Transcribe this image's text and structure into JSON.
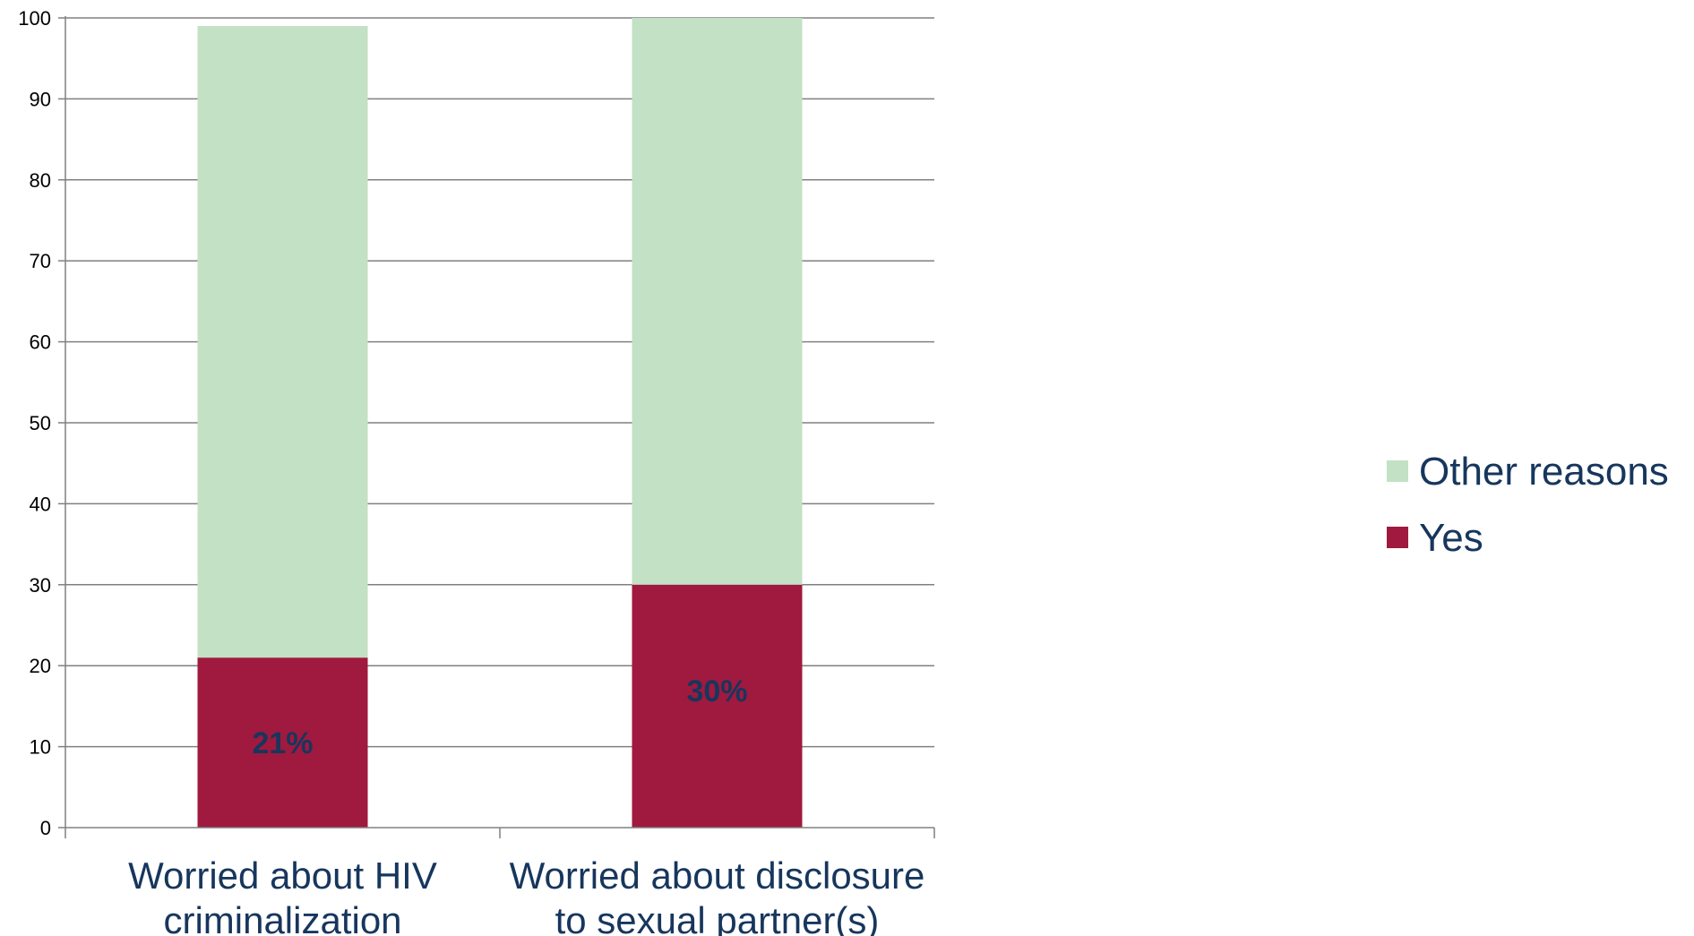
{
  "chart_data": {
    "type": "bar",
    "stacked": true,
    "categories": [
      [
        "Worried about HIV",
        "criminalization"
      ],
      [
        "Worried about disclosure",
        "to sexual partner(s)"
      ]
    ],
    "series": [
      {
        "name": "Yes",
        "values": [
          21,
          30
        ],
        "color": "#a0193e",
        "labels": [
          "21%",
          "30%"
        ]
      },
      {
        "name": "Other reasons",
        "values": [
          78,
          70
        ],
        "color": "#c3e1c4"
      }
    ],
    "title": "",
    "xlabel": "",
    "ylabel": "",
    "ylim": [
      0,
      100
    ],
    "yticks": [
      0,
      10,
      20,
      30,
      40,
      50,
      60,
      70,
      80,
      90,
      100
    ],
    "grid": true,
    "legend_position": "right",
    "legend_order": [
      "Other reasons",
      "Yes"
    ],
    "colors": {
      "grid": "#808080",
      "axis": "#808080",
      "text": "#17365d"
    }
  }
}
